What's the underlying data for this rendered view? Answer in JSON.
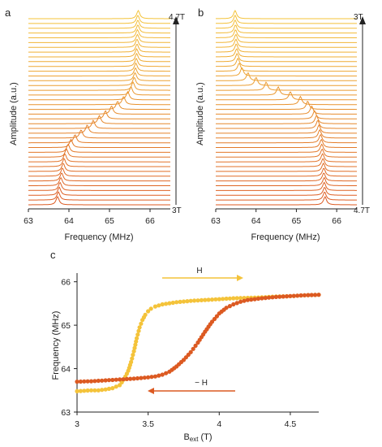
{
  "panel_labels": {
    "a": "a",
    "b": "b",
    "c": "c"
  },
  "colors": {
    "high_field": "#f4c33a",
    "low_field": "#dc5a22",
    "axis": "#222222"
  },
  "chart_data": [
    {
      "panel": "a",
      "type": "line",
      "description": "Waterfall of resonance spectra, field swept 3 T (bottom) to 4.7 T (top)",
      "xlabel": "Frequency (MHz)",
      "ylabel": "Amplitude (a.u.)",
      "xlim": [
        63,
        66.5
      ],
      "x_ticks": [
        "63",
        "64",
        "65",
        "66"
      ],
      "sweep_label_top": "4.7T",
      "sweep_label_bottom": "3T",
      "n_traces": 40,
      "peak_frequency_MHz_bottom_to_top": [
        63.72,
        63.74,
        63.76,
        63.78,
        63.8,
        63.82,
        63.84,
        63.86,
        63.88,
        63.9,
        63.94,
        63.98,
        64.05,
        64.15,
        64.3,
        64.45,
        64.6,
        64.75,
        64.9,
        65.05,
        65.2,
        65.35,
        65.45,
        65.53,
        65.58,
        65.61,
        65.63,
        65.64,
        65.65,
        65.66,
        65.67,
        65.67,
        65.68,
        65.68,
        65.69,
        65.69,
        65.7,
        65.7,
        65.7,
        65.71
      ]
    },
    {
      "panel": "b",
      "type": "line",
      "description": "Waterfall of resonance spectra, field swept 4.7 T (bottom) to 3 T (top)",
      "xlabel": "Frequency (MHz)",
      "ylabel": "Amplitude (a.u.)",
      "xlim": [
        63,
        66.5
      ],
      "x_ticks": [
        "63",
        "64",
        "65",
        "66"
      ],
      "sweep_label_top": "3T",
      "sweep_label_bottom": "4.7T",
      "n_traces": 40,
      "peak_frequency_MHz_bottom_to_top": [
        65.71,
        65.7,
        65.7,
        65.69,
        65.69,
        65.68,
        65.68,
        65.67,
        65.66,
        65.65,
        65.64,
        65.63,
        65.62,
        65.6,
        65.58,
        65.56,
        65.53,
        65.5,
        65.45,
        65.38,
        65.28,
        65.1,
        64.85,
        64.55,
        64.25,
        64.0,
        63.8,
        63.65,
        63.58,
        63.55,
        63.53,
        63.52,
        63.51,
        63.5,
        63.5,
        63.49,
        63.49,
        63.48,
        63.48,
        63.48
      ]
    },
    {
      "panel": "c",
      "type": "scatter",
      "xlabel_main": "B",
      "xlabel_sub": "ext",
      "xlabel_unit": " (T)",
      "ylabel": "Frequency (MHz)",
      "xlim": [
        3,
        4.7
      ],
      "ylim": [
        63,
        66.2
      ],
      "x_ticks": [
        3,
        3.5,
        4,
        4.5
      ],
      "x_tick_labels": [
        "3",
        "3.5",
        "4",
        "4.5"
      ],
      "y_ticks": [
        63,
        64,
        65,
        66
      ],
      "y_tick_labels": [
        "63",
        "64",
        "65",
        "66"
      ],
      "arrow_up_label": "H",
      "arrow_down_label": "− H",
      "series": [
        {
          "color": "#f4c33a",
          "x": [
            3.0,
            3.05,
            3.1,
            3.15,
            3.2,
            3.25,
            3.3,
            3.33,
            3.36,
            3.38,
            3.4,
            3.42,
            3.44,
            3.46,
            3.48,
            3.5,
            3.52,
            3.55,
            3.6,
            3.7,
            3.8,
            3.9,
            4.0,
            4.1,
            4.2,
            4.3,
            4.4,
            4.5,
            4.6,
            4.7
          ],
          "y": [
            63.48,
            63.49,
            63.5,
            63.5,
            63.52,
            63.55,
            63.62,
            63.75,
            63.95,
            64.15,
            64.4,
            64.7,
            64.95,
            65.12,
            65.24,
            65.32,
            65.38,
            65.43,
            65.48,
            65.53,
            65.56,
            65.58,
            65.6,
            65.62,
            65.63,
            65.64,
            65.66,
            65.67,
            65.69,
            65.7
          ]
        },
        {
          "color": "#dc5a22",
          "x": [
            3.0,
            3.1,
            3.2,
            3.3,
            3.4,
            3.5,
            3.55,
            3.6,
            3.65,
            3.7,
            3.75,
            3.8,
            3.85,
            3.9,
            3.95,
            4.0,
            4.05,
            4.1,
            4.15,
            4.2,
            4.3,
            4.4,
            4.5,
            4.6,
            4.7
          ],
          "y": [
            63.7,
            63.71,
            63.73,
            63.75,
            63.77,
            63.8,
            63.82,
            63.86,
            63.93,
            64.05,
            64.2,
            64.38,
            64.6,
            64.85,
            65.08,
            65.27,
            65.4,
            65.48,
            65.54,
            65.58,
            65.62,
            65.65,
            65.67,
            65.69,
            65.7
          ]
        }
      ]
    }
  ]
}
